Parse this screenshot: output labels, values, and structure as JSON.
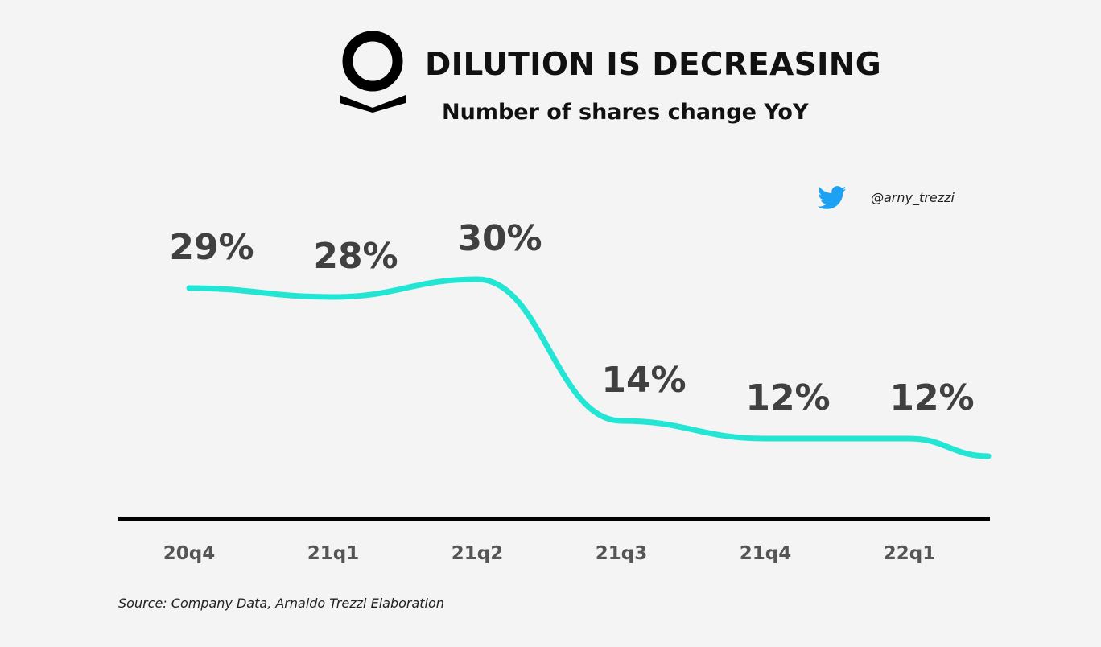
{
  "header": {
    "title": "DILUTION IS DECREASING",
    "subtitle": "Number of shares change YoY",
    "logo_icon": "palantir-logo-icon"
  },
  "credit": {
    "icon": "twitter-bird-icon",
    "handle": "@arny_trezzi",
    "icon_color": "#1da1f2"
  },
  "source": "Source: Company Data, Arnaldo Trezzi Elaboration",
  "chart_data": {
    "type": "line",
    "title": "DILUTION IS DECREASING",
    "subtitle": "Number of shares change YoY",
    "categories": [
      "20q4",
      "21q1",
      "21q2",
      "21q3",
      "21q4",
      "22q1"
    ],
    "series": [
      {
        "values": [
          29,
          28,
          30,
          14,
          12,
          12
        ]
      }
    ],
    "data_labels": [
      "29%",
      "28%",
      "30%",
      "14%",
      "12%",
      "12%"
    ],
    "line_color": "#22e5d4",
    "label_color": "#404040",
    "axis_color": "#000000",
    "grid": false,
    "legend": "none"
  }
}
